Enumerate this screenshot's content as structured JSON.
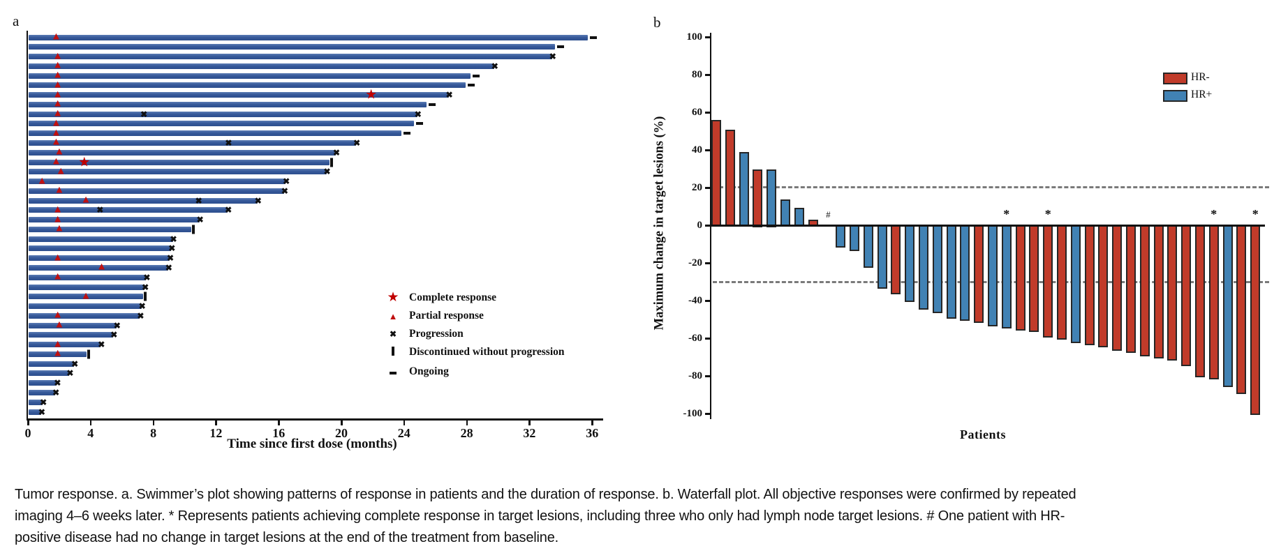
{
  "figure": {
    "panel_a_label": "a",
    "panel_b_label": "b",
    "caption": "Tumor response. a. Swimmer’s plot showing patterns of response in patients and the duration of response. b. Waterfall plot. All objective responses were confirmed by repeated imaging 4–6 weeks later. * Represents patients achieving complete response in target lesions, including three who only had lymph node target lesions. # One patient with HR-positive disease had no change in target lesions at the end of the treatment from baseline."
  },
  "colors": {
    "swimmer_bar": "#36599A",
    "hr_negative": "#C13B2A",
    "hr_positive": "#4182B4",
    "marker_red": "#C01010",
    "outline": "#262626",
    "dashed_reference": "#7a7a7a"
  },
  "chart_data": [
    {
      "type": "swimmer",
      "xlabel": "Time since first dose (months)",
      "x_ticks": [
        0,
        4,
        8,
        12,
        16,
        20,
        24,
        28,
        32,
        36
      ],
      "xlim": [
        0,
        37
      ],
      "legend": [
        {
          "symbol": "star",
          "label": "Complete response"
        },
        {
          "symbol": "triangle",
          "label": "Partial response"
        },
        {
          "symbol": "x",
          "label": "Progression"
        },
        {
          "symbol": "bar",
          "label": "Discontinued without progression"
        },
        {
          "symbol": "dash",
          "label": "Ongoing"
        }
      ],
      "bars": [
        {
          "duration": 35.7,
          "markers": [
            {
              "type": "partial_response",
              "month": 1.8
            },
            {
              "type": "ongoing"
            }
          ]
        },
        {
          "duration": 33.6,
          "markers": [
            {
              "type": "ongoing"
            }
          ]
        },
        {
          "duration": 33.4,
          "markers": [
            {
              "type": "partial_response",
              "month": 1.9
            },
            {
              "type": "progression"
            }
          ]
        },
        {
          "duration": 29.7,
          "markers": [
            {
              "type": "partial_response",
              "month": 1.9
            },
            {
              "type": "progression"
            }
          ]
        },
        {
          "duration": 28.2,
          "markers": [
            {
              "type": "partial_response",
              "month": 1.9
            },
            {
              "type": "ongoing"
            }
          ]
        },
        {
          "duration": 27.9,
          "markers": [
            {
              "type": "partial_response",
              "month": 1.9
            },
            {
              "type": "ongoing"
            }
          ]
        },
        {
          "duration": 26.8,
          "markers": [
            {
              "type": "partial_response",
              "month": 1.9
            },
            {
              "type": "complete_response",
              "month": 21.9
            },
            {
              "type": "progression"
            }
          ]
        },
        {
          "duration": 25.4,
          "markers": [
            {
              "type": "partial_response",
              "month": 1.9
            },
            {
              "type": "ongoing"
            }
          ]
        },
        {
          "duration": 24.8,
          "markers": [
            {
              "type": "partial_response",
              "month": 1.9
            },
            {
              "type": "progression",
              "month": 7.4
            },
            {
              "type": "progression"
            }
          ]
        },
        {
          "duration": 24.6,
          "markers": [
            {
              "type": "partial_response",
              "month": 1.8
            },
            {
              "type": "ongoing"
            }
          ]
        },
        {
          "duration": 23.8,
          "markers": [
            {
              "type": "partial_response",
              "month": 1.8
            },
            {
              "type": "ongoing"
            }
          ]
        },
        {
          "duration": 20.9,
          "markers": [
            {
              "type": "partial_response",
              "month": 1.8
            },
            {
              "type": "progression",
              "month": 12.8
            },
            {
              "type": "progression"
            }
          ]
        },
        {
          "duration": 19.6,
          "markers": [
            {
              "type": "partial_response",
              "month": 2.0
            },
            {
              "type": "progression"
            }
          ]
        },
        {
          "duration": 19.2,
          "markers": [
            {
              "type": "partial_response",
              "month": 1.8
            },
            {
              "type": "complete_response",
              "month": 3.6
            },
            {
              "type": "discontinued"
            }
          ]
        },
        {
          "duration": 19.0,
          "markers": [
            {
              "type": "partial_response",
              "month": 2.1
            },
            {
              "type": "progression"
            }
          ]
        },
        {
          "duration": 16.4,
          "markers": [
            {
              "type": "partial_response",
              "month": 0.9
            },
            {
              "type": "progression"
            }
          ]
        },
        {
          "duration": 16.3,
          "markers": [
            {
              "type": "partial_response",
              "month": 2.0
            },
            {
              "type": "progression"
            }
          ]
        },
        {
          "duration": 14.6,
          "markers": [
            {
              "type": "partial_response",
              "month": 3.7
            },
            {
              "type": "progression",
              "month": 10.9
            },
            {
              "type": "progression"
            }
          ]
        },
        {
          "duration": 12.7,
          "markers": [
            {
              "type": "partial_response",
              "month": 1.9
            },
            {
              "type": "progression",
              "month": 4.6
            },
            {
              "type": "progression"
            }
          ]
        },
        {
          "duration": 10.9,
          "markers": [
            {
              "type": "partial_response",
              "month": 1.9
            },
            {
              "type": "progression"
            }
          ]
        },
        {
          "duration": 10.4,
          "markers": [
            {
              "type": "partial_response",
              "month": 2.0
            },
            {
              "type": "discontinued"
            }
          ]
        },
        {
          "duration": 9.2,
          "markers": [
            {
              "type": "progression"
            }
          ]
        },
        {
          "duration": 9.1,
          "markers": [
            {
              "type": "progression"
            }
          ]
        },
        {
          "duration": 9.0,
          "markers": [
            {
              "type": "partial_response",
              "month": 1.9
            },
            {
              "type": "progression"
            }
          ]
        },
        {
          "duration": 8.9,
          "markers": [
            {
              "type": "partial_response",
              "month": 4.7
            },
            {
              "type": "progression"
            }
          ]
        },
        {
          "duration": 7.5,
          "markers": [
            {
              "type": "partial_response",
              "month": 1.9
            },
            {
              "type": "progression"
            }
          ]
        },
        {
          "duration": 7.4,
          "markers": [
            {
              "type": "progression"
            }
          ]
        },
        {
          "duration": 7.3,
          "markers": [
            {
              "type": "partial_response",
              "month": 3.7
            },
            {
              "type": "discontinued"
            }
          ]
        },
        {
          "duration": 7.2,
          "markers": [
            {
              "type": "progression"
            }
          ]
        },
        {
          "duration": 7.1,
          "markers": [
            {
              "type": "partial_response",
              "month": 1.9
            },
            {
              "type": "progression"
            }
          ]
        },
        {
          "duration": 5.6,
          "markers": [
            {
              "type": "partial_response",
              "month": 2.0
            },
            {
              "type": "progression"
            }
          ]
        },
        {
          "duration": 5.4,
          "markers": [
            {
              "type": "progression"
            }
          ]
        },
        {
          "duration": 4.6,
          "markers": [
            {
              "type": "partial_response",
              "month": 1.9
            },
            {
              "type": "progression"
            }
          ]
        },
        {
          "duration": 3.7,
          "markers": [
            {
              "type": "partial_response",
              "month": 1.9
            },
            {
              "type": "discontinued"
            }
          ]
        },
        {
          "duration": 2.9,
          "markers": [
            {
              "type": "progression"
            }
          ]
        },
        {
          "duration": 2.6,
          "markers": [
            {
              "type": "progression"
            }
          ]
        },
        {
          "duration": 1.8,
          "markers": [
            {
              "type": "progression"
            }
          ]
        },
        {
          "duration": 1.7,
          "markers": [
            {
              "type": "progression"
            }
          ]
        },
        {
          "duration": 0.9,
          "markers": [
            {
              "type": "progression"
            }
          ]
        },
        {
          "duration": 0.8,
          "markers": [
            {
              "type": "progression"
            }
          ]
        }
      ]
    },
    {
      "type": "bar",
      "xlabel": "Patients",
      "ylabel": "Maximum change in target lesions (%)",
      "ylim": [
        -100,
        100
      ],
      "y_ticks": [
        100,
        80,
        60,
        40,
        20,
        0,
        -20,
        -40,
        -60,
        -80,
        -100
      ],
      "reference_lines": [
        20,
        -30
      ],
      "legend": [
        {
          "label": "HR-",
          "color_key": "hr_negative"
        },
        {
          "label": "HR+",
          "color_key": "hr_positive"
        }
      ],
      "values": [
        {
          "value": 56,
          "group": "HR-"
        },
        {
          "value": 51,
          "group": "HR-"
        },
        {
          "value": 39,
          "group": "HR+"
        },
        {
          "value": 30,
          "group": "HR-"
        },
        {
          "value": 30,
          "group": "HR+"
        },
        {
          "value": 14,
          "group": "HR+"
        },
        {
          "value": 9.5,
          "group": "HR+"
        },
        {
          "value": 3,
          "group": "HR-"
        },
        {
          "value": 0,
          "group": "HR+",
          "annotation": "#"
        },
        {
          "value": -11,
          "group": "HR+"
        },
        {
          "value": -13,
          "group": "HR+"
        },
        {
          "value": -22,
          "group": "HR+"
        },
        {
          "value": -33,
          "group": "HR+"
        },
        {
          "value": -36,
          "group": "HR-"
        },
        {
          "value": -40,
          "group": "HR+"
        },
        {
          "value": -44,
          "group": "HR+"
        },
        {
          "value": -46,
          "group": "HR+"
        },
        {
          "value": -49,
          "group": "HR+"
        },
        {
          "value": -50,
          "group": "HR+"
        },
        {
          "value": -51,
          "group": "HR-"
        },
        {
          "value": -53,
          "group": "HR+"
        },
        {
          "value": -54,
          "group": "HR+",
          "annotation": "*"
        },
        {
          "value": -55,
          "group": "HR-"
        },
        {
          "value": -56,
          "group": "HR-"
        },
        {
          "value": -59,
          "group": "HR-",
          "annotation": "*"
        },
        {
          "value": -60,
          "group": "HR-"
        },
        {
          "value": -62,
          "group": "HR+"
        },
        {
          "value": -63,
          "group": "HR-"
        },
        {
          "value": -64,
          "group": "HR-"
        },
        {
          "value": -66,
          "group": "HR-"
        },
        {
          "value": -67,
          "group": "HR-"
        },
        {
          "value": -69,
          "group": "HR-"
        },
        {
          "value": -70,
          "group": "HR-"
        },
        {
          "value": -71,
          "group": "HR-"
        },
        {
          "value": -74,
          "group": "HR-"
        },
        {
          "value": -80,
          "group": "HR-"
        },
        {
          "value": -81,
          "group": "HR-",
          "annotation": "*"
        },
        {
          "value": -85,
          "group": "HR+"
        },
        {
          "value": -89,
          "group": "HR-"
        },
        {
          "value": -100,
          "group": "HR-",
          "annotation": "*"
        }
      ]
    }
  ]
}
